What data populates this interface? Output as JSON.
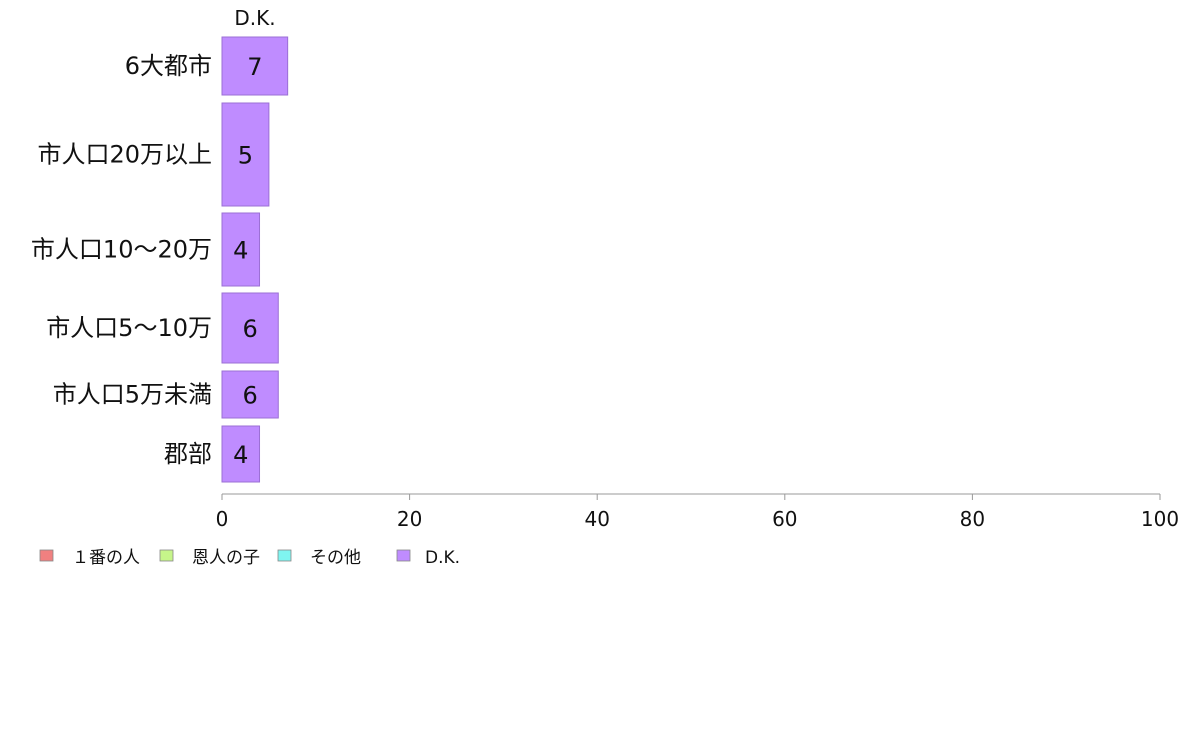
{
  "chart_data": {
    "type": "bar",
    "orientation": "horizontal",
    "stacked": true,
    "categories": [
      "6大都市",
      "市人口20万以上",
      "市人口10〜20万",
      "市人口5〜10万",
      "市人口5万未満",
      "郡部"
    ],
    "series": [
      {
        "name": "１番の人",
        "color": "#f08080",
        "values": [
          0,
          0,
          0,
          0,
          0,
          0
        ]
      },
      {
        "name": "恩人の子",
        "color": "#c6f58a",
        "values": [
          0,
          0,
          0,
          0,
          0,
          0
        ]
      },
      {
        "name": "その他",
        "color": "#7ff5f0",
        "values": [
          0,
          0,
          0,
          0,
          0,
          0
        ]
      },
      {
        "name": "D.K.",
        "color": "#bf8cff",
        "values": [
          7,
          5,
          4,
          6,
          6,
          4
        ]
      }
    ],
    "series_top_label": "D.K.",
    "xlim": [
      0,
      100
    ],
    "xticks": [
      0,
      20,
      40,
      60,
      80,
      100
    ],
    "grid": false,
    "legend_position": "bottom-left"
  }
}
